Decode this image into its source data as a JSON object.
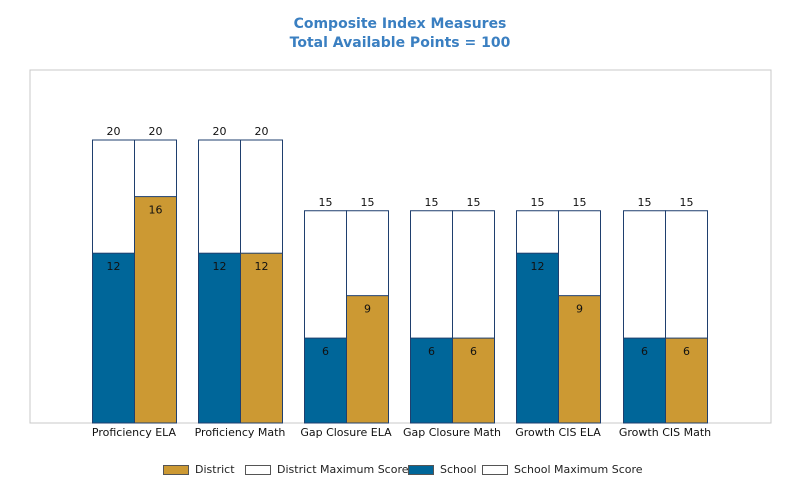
{
  "chart_data": {
    "type": "bar",
    "title": "Composite Index Measures",
    "subtitle": "Total Available Points = 100",
    "categories": [
      "Proficiency ELA",
      "Proficiency Math",
      "Gap Closure ELA",
      "Gap Closure Math",
      "Growth CIS ELA",
      "Growth CIS Math"
    ],
    "series": [
      {
        "name": "School",
        "values": [
          12,
          12,
          6,
          6,
          12,
          6
        ],
        "max_values": [
          20,
          20,
          15,
          15,
          15,
          15
        ],
        "max_name": "School Maximum Score"
      },
      {
        "name": "District",
        "values": [
          16,
          12,
          9,
          6,
          9,
          6
        ],
        "max_values": [
          20,
          20,
          15,
          15,
          15,
          15
        ],
        "max_name": "District Maximum Score"
      }
    ],
    "ylim": [
      0,
      25
    ],
    "grid": false,
    "legend_position": "bottom",
    "colors": {
      "School": "#006699",
      "District": "#cc9933",
      "max_fill": "#ffffff",
      "outline": "#1f3f6e",
      "title": "#3a7fc1"
    }
  },
  "legend": [
    {
      "label": "District",
      "color": "#cc9933"
    },
    {
      "label": "District Maximum Score",
      "color": "#ffffff"
    },
    {
      "label": "School",
      "color": "#006699"
    },
    {
      "label": "School Maximum Score",
      "color": "#ffffff"
    }
  ]
}
